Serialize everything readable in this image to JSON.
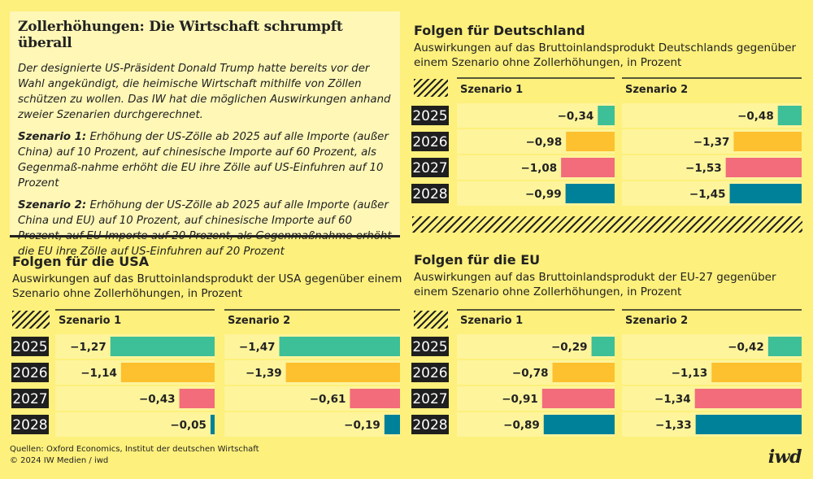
{
  "intro": {
    "title": "Zollerhöhungen: Die Wirtschaft schrumpft überall",
    "lead": "Der designierte US-Präsident Donald Trump hatte bereits vor der Wahl angekündigt, die heimische Wirtschaft mithilfe von Zöllen schützen zu wollen. Das IW hat die möglichen Auswirkungen anhand zweier Szenarien durchgerechnet.",
    "s1_label": "Szenario 1:",
    "s1_text": " Erhöhung der US-Zölle ab 2025 auf alle Importe (außer China) auf 10 Prozent, auf chinesische Importe auf 60 Prozent, als Gegenmaß-nahme erhöht die EU ihre Zölle auf US-Einfuhren auf 10 Prozent",
    "s2_label": "Szenario 2:",
    "s2_text": " Erhöhung der US-Zölle ab 2025 auf alle Importe (außer China und EU) auf 10 Prozent, auf chinesische Importe auf 60 Prozent, auf EU-Importe auf 20 Prozent, als Gegenmaßnahme erhöht die EU ihre Zölle auf US-Einfuhren auf 20 Prozent"
  },
  "colors": {
    "2025": "#3dbf97",
    "2026": "#fdc02f",
    "2027": "#f26c7b",
    "2028": "#00819a",
    "year_bg": "#1f1f1f"
  },
  "panels": {
    "de": {
      "title": "Folgen für Deutschland",
      "subtitle": "Auswirkungen auf das Bruttoinlandsprodukt Deutschlands gegenüber einem Szenario ohne Zollerhöhungen, in Prozent"
    },
    "usa": {
      "title": "Folgen für die USA",
      "subtitle": "Auswirkungen auf das Bruttoinlandsprodukt der USA gegenüber einem Szenario ohne Zollerhöhungen, in Prozent"
    },
    "eu": {
      "title": "Folgen für die EU",
      "subtitle": "Auswirkungen auf das Bruttoinlandsprodukt der EU-27 gegenüber einem Szenario ohne Zollerhöhungen, in Prozent"
    }
  },
  "chart_data": [
    {
      "id": "de",
      "type": "bar",
      "categories": [
        "2025",
        "2026",
        "2027",
        "2028"
      ],
      "series": [
        {
          "name": "Szenario 1",
          "values": [
            -0.34,
            -0.98,
            -1.08,
            -0.99
          ]
        },
        {
          "name": "Szenario 2",
          "values": [
            -0.48,
            -1.37,
            -1.53,
            -1.45
          ]
        }
      ]
    },
    {
      "id": "usa",
      "type": "bar",
      "categories": [
        "2025",
        "2026",
        "2027",
        "2028"
      ],
      "series": [
        {
          "name": "Szenario 1",
          "values": [
            -1.27,
            -1.14,
            -0.43,
            -0.05
          ]
        },
        {
          "name": "Szenario 2",
          "values": [
            -1.47,
            -1.39,
            -0.61,
            -0.19
          ]
        }
      ]
    },
    {
      "id": "eu",
      "type": "bar",
      "categories": [
        "2025",
        "2026",
        "2027",
        "2028"
      ],
      "series": [
        {
          "name": "Szenario 1",
          "values": [
            -0.29,
            -0.78,
            -0.91,
            -0.89
          ]
        },
        {
          "name": "Szenario 2",
          "values": [
            -0.42,
            -1.13,
            -1.34,
            -1.33
          ]
        }
      ]
    }
  ],
  "footer": {
    "source": "Quellen: Oxford Economics, Institut der deutschen Wirtschaft",
    "copyright": "© 2024 IW Medien / iwd",
    "logo": "iwd"
  }
}
